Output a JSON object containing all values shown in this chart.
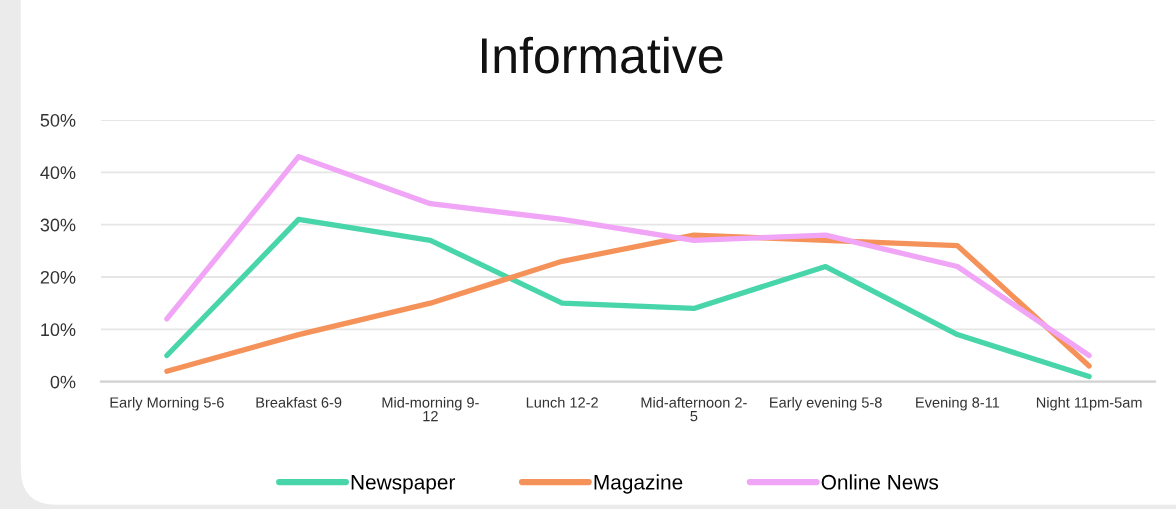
{
  "chart_data": {
    "type": "line",
    "title": "Informative",
    "categories": [
      "Early Morning 5-6",
      "Breakfast 6-9",
      "Mid-morning 9-\n12",
      "Lunch 12-2",
      "Mid-afternoon 2-\n5",
      "Early evening 5-8",
      "Evening 8-11",
      "Night 11pm-5am"
    ],
    "series": [
      {
        "name": "Newspaper",
        "color": "#48d5aa",
        "values": [
          5,
          31,
          27,
          15,
          14,
          22,
          9,
          1
        ]
      },
      {
        "name": "Magazine",
        "color": "#f5925a",
        "values": [
          2,
          9,
          15,
          23,
          28,
          27,
          26,
          3
        ]
      },
      {
        "name": "Online News",
        "color": "#f0a5f7",
        "values": [
          12,
          43,
          34,
          31,
          27,
          28,
          22,
          5
        ]
      }
    ],
    "ylim": [
      0,
      50
    ],
    "yticks": [
      {
        "value": 0,
        "label": "0%"
      },
      {
        "value": 10,
        "label": "10%"
      },
      {
        "value": 20,
        "label": "20%"
      },
      {
        "value": 30,
        "label": "30%"
      },
      {
        "value": 40,
        "label": "40%"
      },
      {
        "value": 50,
        "label": "50%"
      }
    ],
    "grid": "y",
    "legend": "bottom",
    "line_style": "solid"
  }
}
